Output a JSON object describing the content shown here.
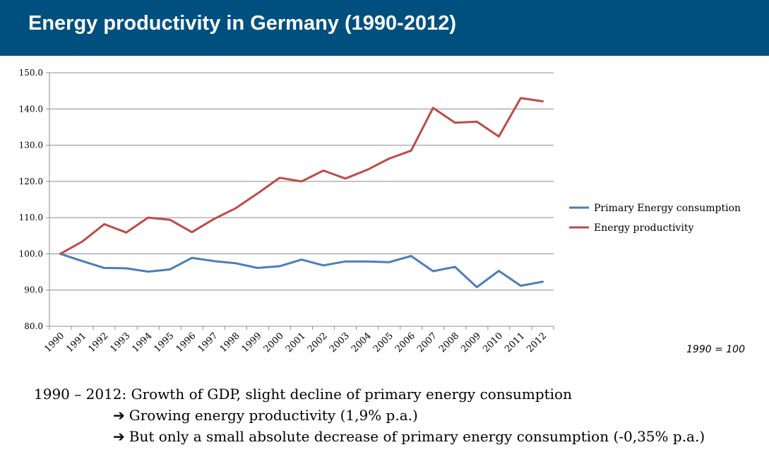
{
  "header": {
    "title": "Energy productivity in Germany (1990-2012)"
  },
  "note": "1990 = 100",
  "caption": {
    "main": "1990 – 2012: Growth of GDP, slight decline of primary energy consumption",
    "bullets": [
      "Growing energy productivity (1,9% p.a.)",
      "But only a small absolute decrease of primary energy consumption (-0,35% p.a.)"
    ]
  },
  "chart_data": {
    "type": "line",
    "title": "",
    "xlabel": "",
    "ylabel": "",
    "categories": [
      "1990",
      "1991",
      "1992",
      "1993",
      "1994",
      "1995",
      "1996",
      "1997",
      "1998",
      "1999",
      "2000",
      "2001",
      "2002",
      "2003",
      "2004",
      "2005",
      "2006",
      "2007",
      "2008",
      "2009",
      "2010",
      "2011",
      "2012"
    ],
    "ylim": [
      80,
      150
    ],
    "yticks": [
      "80.0",
      "90.0",
      "100.0",
      "110.0",
      "120.0",
      "130.0",
      "140.0",
      "150.0"
    ],
    "grid": true,
    "legend_position": "right",
    "series": [
      {
        "name": "Primary Energy consumption",
        "color": "#4a7ebb",
        "values": [
          100.0,
          98.0,
          96.1,
          96.0,
          95.1,
          95.7,
          98.9,
          98.0,
          97.4,
          96.1,
          96.6,
          98.4,
          96.8,
          97.9,
          97.9,
          97.7,
          99.4,
          95.2,
          96.4,
          90.8,
          95.3,
          91.2,
          92.3
        ]
      },
      {
        "name": "Energy  productivity",
        "color": "#be4b48",
        "values": [
          100.0,
          103.4,
          108.2,
          105.9,
          110.0,
          109.4,
          106.0,
          109.6,
          112.6,
          116.7,
          121.0,
          120.0,
          123.0,
          120.8,
          123.2,
          126.3,
          128.5,
          140.3,
          136.2,
          136.5,
          132.4,
          143.0,
          142.1
        ]
      }
    ]
  }
}
